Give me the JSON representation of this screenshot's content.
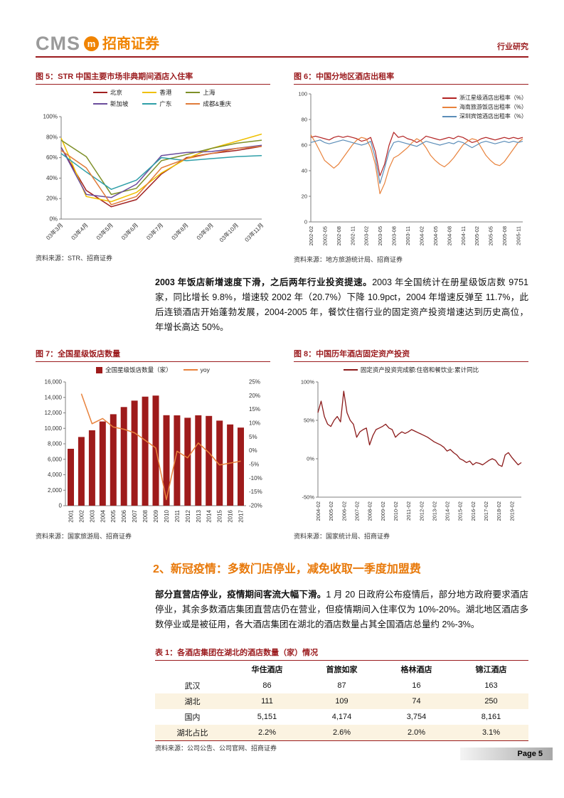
{
  "header": {
    "logo_cms": "CMS",
    "logo_mark": "m",
    "logo_brand": "招商证券",
    "doc_type": "行业研究"
  },
  "figures": {
    "fig5": {
      "title": "图 5：STR 中国主要市场非典期间酒店入住率",
      "source": "资料来源：STR、招商证券"
    },
    "fig6": {
      "title": "图 6：中国分地区酒店出租率",
      "source": "资料来源：地方旅游统计局、招商证券"
    },
    "fig7": {
      "title": "图 7：全国星级饭店数量",
      "source": "资料来源：国家旅游局、招商证券"
    },
    "fig8": {
      "title": "图 8：中国历年酒店固定资产投资",
      "source": "资料来源：国家统计局、招商证券"
    }
  },
  "paragraph1": {
    "bold": "2003 年饭店新增速度下滑，之后两年行业投资提速。",
    "rest": "2003 年全国统计在册星级饭店数 9751 家，同比增长 9.8%，增速较 2002 年（20.7%）下降 10.9pct，2004 年增速反弹至 11.7%，此后连锁酒店开始蓬勃发展，2004-2005 年，餐饮住宿行业的固定资产投资增速达到历史高位，年增长高达 50%。"
  },
  "section2": {
    "heading": "2、新冠疫情：多数门店停业，减免收取一季度加盟费",
    "para_bold": "部分直营店停业，疫情期间客流大幅下滑。",
    "para_rest": "1 月 20 日政府公布疫情后，部分地方政府要求酒店停业，其余多数酒店集团直营店仍在营业，但疫情期间入住率仅为 10%-20%。湖北地区酒店多数停业或是被征用，各大酒店集团在湖北的酒店数量占其全国酒店总量约 2%-3%。"
  },
  "table1": {
    "title": "表 1：各酒店集团在湖北的酒店数量（家）情况",
    "columns": [
      "",
      "华住酒店",
      "首旅如家",
      "格林酒店",
      "锦江酒店"
    ],
    "rows": [
      {
        "label": "武汉",
        "values": [
          "86",
          "87",
          "16",
          "163"
        ]
      },
      {
        "label": "湖北",
        "values": [
          "111",
          "109",
          "74",
          "250"
        ]
      },
      {
        "label": "国内",
        "values": [
          "5,151",
          "4,174",
          "3,754",
          "8,161"
        ]
      },
      {
        "label": "湖北占比",
        "values": [
          "2.2%",
          "2.6%",
          "2.0%",
          "3.1%"
        ]
      }
    ],
    "source": "资料来源：公司公告、公司官网、招商证券"
  },
  "footer": {
    "page_label": "Page 5"
  },
  "chart_data": [
    {
      "id": "fig5",
      "type": "line",
      "title": "STR 中国主要市场非典期间酒店入住率",
      "x_labels": [
        "03年3月",
        "03年4月",
        "03年5月",
        "03年6月",
        "03年7月",
        "03年8月",
        "03年9月",
        "03年10月",
        "03年11月"
      ],
      "label_step": 1,
      "ylim": [
        0,
        100
      ],
      "yticks": [
        {
          "v": 0,
          "label": "0%"
        },
        {
          "v": 20,
          "label": "20%"
        },
        {
          "v": 40,
          "label": "40%"
        },
        {
          "v": 60,
          "label": "60%"
        },
        {
          "v": 80,
          "label": "80%"
        },
        {
          "v": 100,
          "label": "100%"
        }
      ],
      "series": [
        {
          "name": "北京",
          "color": "#A02020",
          "values": [
            70,
            28,
            12,
            19,
            44,
            60,
            64,
            67,
            71
          ]
        },
        {
          "name": "香港",
          "color": "#EFC000",
          "values": [
            79,
            22,
            17,
            26,
            45,
            59,
            69,
            76,
            83
          ]
        },
        {
          "name": "上海",
          "color": "#7E8F28",
          "values": [
            77,
            61,
            24,
            30,
            57,
            63,
            69,
            74,
            77
          ]
        },
        {
          "name": "新加坡",
          "color": "#6A4C9C",
          "values": [
            70,
            24,
            21,
            34,
            62,
            65,
            66,
            69,
            72
          ]
        },
        {
          "name": "广东",
          "color": "#2E9FA8",
          "values": [
            64,
            46,
            29,
            38,
            60,
            57,
            59,
            61,
            62
          ]
        },
        {
          "name": "成都&重庆",
          "color": "#E07B39",
          "values": [
            67,
            50,
            14,
            22,
            50,
            59,
            64,
            69,
            71
          ]
        }
      ]
    },
    {
      "id": "fig6",
      "type": "line",
      "title": "中国分地区酒店出租率",
      "x_labels": [
        "2002-02",
        "2002-05",
        "2002-08",
        "2002-11",
        "2003-02",
        "2003-05",
        "2003-08",
        "2003-11",
        "2004-02",
        "2004-05",
        "2004-08",
        "2004-11",
        "2005-02",
        "2005-05",
        "2005-08",
        "2005-11"
      ],
      "label_step": 3,
      "ylim": [
        0,
        100
      ],
      "yticks": [
        {
          "v": 0,
          "label": "0"
        },
        {
          "v": 20,
          "label": "20"
        },
        {
          "v": 40,
          "label": "40"
        },
        {
          "v": 60,
          "label": "60"
        },
        {
          "v": 80,
          "label": "80"
        },
        {
          "v": 100,
          "label": "100"
        }
      ],
      "series": [
        {
          "name": "浙江星级酒店出租率（%）",
          "color": "#B22222",
          "values": [
            66,
            67,
            66,
            65,
            64,
            66,
            67,
            66,
            67,
            66,
            65,
            63,
            64,
            66,
            55,
            36,
            45,
            60,
            70,
            66,
            67,
            65,
            64,
            62,
            64,
            67,
            66,
            65,
            64,
            65,
            66,
            65,
            67,
            66,
            64,
            62,
            63,
            65,
            66,
            65,
            64,
            65,
            66,
            65,
            66,
            65,
            66
          ]
        },
        {
          "name": "海南旅游饭店出租率（%）",
          "color": "#E8823C",
          "values": [
            68,
            62,
            55,
            48,
            45,
            42,
            45,
            50,
            55,
            60,
            64,
            66,
            65,
            58,
            45,
            22,
            30,
            42,
            50,
            52,
            55,
            58,
            62,
            65,
            63,
            58,
            52,
            48,
            45,
            43,
            46,
            50,
            55,
            60,
            63,
            65,
            64,
            58,
            52,
            48,
            45,
            44,
            47,
            52,
            57,
            62,
            65
          ]
        },
        {
          "name": "深圳宾馆酒店出租率（%）",
          "color": "#5B8DB8",
          "values": [
            62,
            63,
            64,
            62,
            61,
            62,
            63,
            64,
            63,
            62,
            61,
            60,
            61,
            63,
            50,
            30,
            42,
            55,
            62,
            63,
            62,
            61,
            60,
            59,
            61,
            63,
            62,
            61,
            60,
            61,
            62,
            61,
            63,
            62,
            60,
            58,
            60,
            62,
            63,
            62,
            61,
            62,
            63,
            62,
            63,
            62,
            63
          ]
        }
      ]
    },
    {
      "id": "fig7",
      "type": "bar",
      "title": "全国星级饭店数量",
      "categories": [
        "2001",
        "2002",
        "2003",
        "2004",
        "2005",
        "2006",
        "2007",
        "2008",
        "2009",
        "2010",
        "2011",
        "2012",
        "2013",
        "2014",
        "2015",
        "2016",
        "2017"
      ],
      "bar_series": {
        "name": "全国星级饭店数量（家）",
        "color": "#9E1B1B",
        "values": [
          7358,
          8880,
          9751,
          10888,
          11828,
          12751,
          13583,
          14099,
          14237,
          11700,
          11676,
          11367,
          11687,
          11604,
          11000,
          10500,
          10100
        ]
      },
      "line_series": {
        "name": "yoy",
        "color": "#E8823C",
        "values": [
          null,
          20.7,
          9.8,
          11.7,
          8.6,
          7.8,
          6.5,
          3.8,
          1.0,
          -17.8,
          -0.2,
          -2.6,
          2.8,
          -0.7,
          -5.2,
          -4.5,
          -3.8
        ]
      },
      "ylim_left": [
        0,
        16000
      ],
      "yticks_left": [
        {
          "v": 0,
          "label": "0"
        },
        {
          "v": 2000,
          "label": "2,000"
        },
        {
          "v": 4000,
          "label": "4,000"
        },
        {
          "v": 6000,
          "label": "6,000"
        },
        {
          "v": 8000,
          "label": "8,000"
        },
        {
          "v": 10000,
          "label": "10,000"
        },
        {
          "v": 12000,
          "label": "12,000"
        },
        {
          "v": 14000,
          "label": "14,000"
        },
        {
          "v": 16000,
          "label": "16,000"
        }
      ],
      "ylim_right": [
        -20,
        25
      ],
      "yticks_right": [
        {
          "v": -20,
          "label": "-20%"
        },
        {
          "v": -15,
          "label": "-15%"
        },
        {
          "v": -10,
          "label": "-10%"
        },
        {
          "v": -5,
          "label": "-5%"
        },
        {
          "v": 0,
          "label": "0%"
        },
        {
          "v": 5,
          "label": "5%"
        },
        {
          "v": 10,
          "label": "10%"
        },
        {
          "v": 15,
          "label": "15%"
        },
        {
          "v": 20,
          "label": "20%"
        },
        {
          "v": 25,
          "label": "25%"
        }
      ]
    },
    {
      "id": "fig8",
      "type": "line",
      "title": "中国历年酒店固定资产投资",
      "x_labels": [
        "2004-02",
        "2005-02",
        "2006-02",
        "2007-02",
        "2008-02",
        "2009-02",
        "2010-02",
        "2011-02",
        "2012-02",
        "2013-02",
        "2014-02",
        "2015-02",
        "2016-02",
        "2017-02",
        "2018-02",
        "2019-02"
      ],
      "label_step": 4,
      "ylim": [
        -50,
        100
      ],
      "yticks": [
        {
          "v": -50,
          "label": "-50%"
        },
        {
          "v": 0,
          "label": "0%"
        },
        {
          "v": 50,
          "label": "50%"
        },
        {
          "v": 100,
          "label": "100%"
        }
      ],
      "series": [
        {
          "name": "固定资产投资完成额:住宿和餐饮业:累计同比",
          "color": "#8B1A1A",
          "values": [
            60,
            75,
            55,
            45,
            42,
            50,
            55,
            48,
            88,
            60,
            50,
            45,
            28,
            35,
            38,
            40,
            18,
            30,
            38,
            40,
            42,
            45,
            40,
            38,
            28,
            32,
            35,
            33,
            35,
            38,
            36,
            34,
            32,
            30,
            28,
            25,
            22,
            20,
            18,
            15,
            10,
            12,
            8,
            5,
            0,
            -2,
            -5,
            -3,
            -8,
            -5,
            -6,
            -8,
            -5,
            -2,
            0,
            -2,
            -8,
            -10,
            5,
            8,
            2,
            -3,
            -8,
            -5
          ]
        }
      ]
    }
  ]
}
